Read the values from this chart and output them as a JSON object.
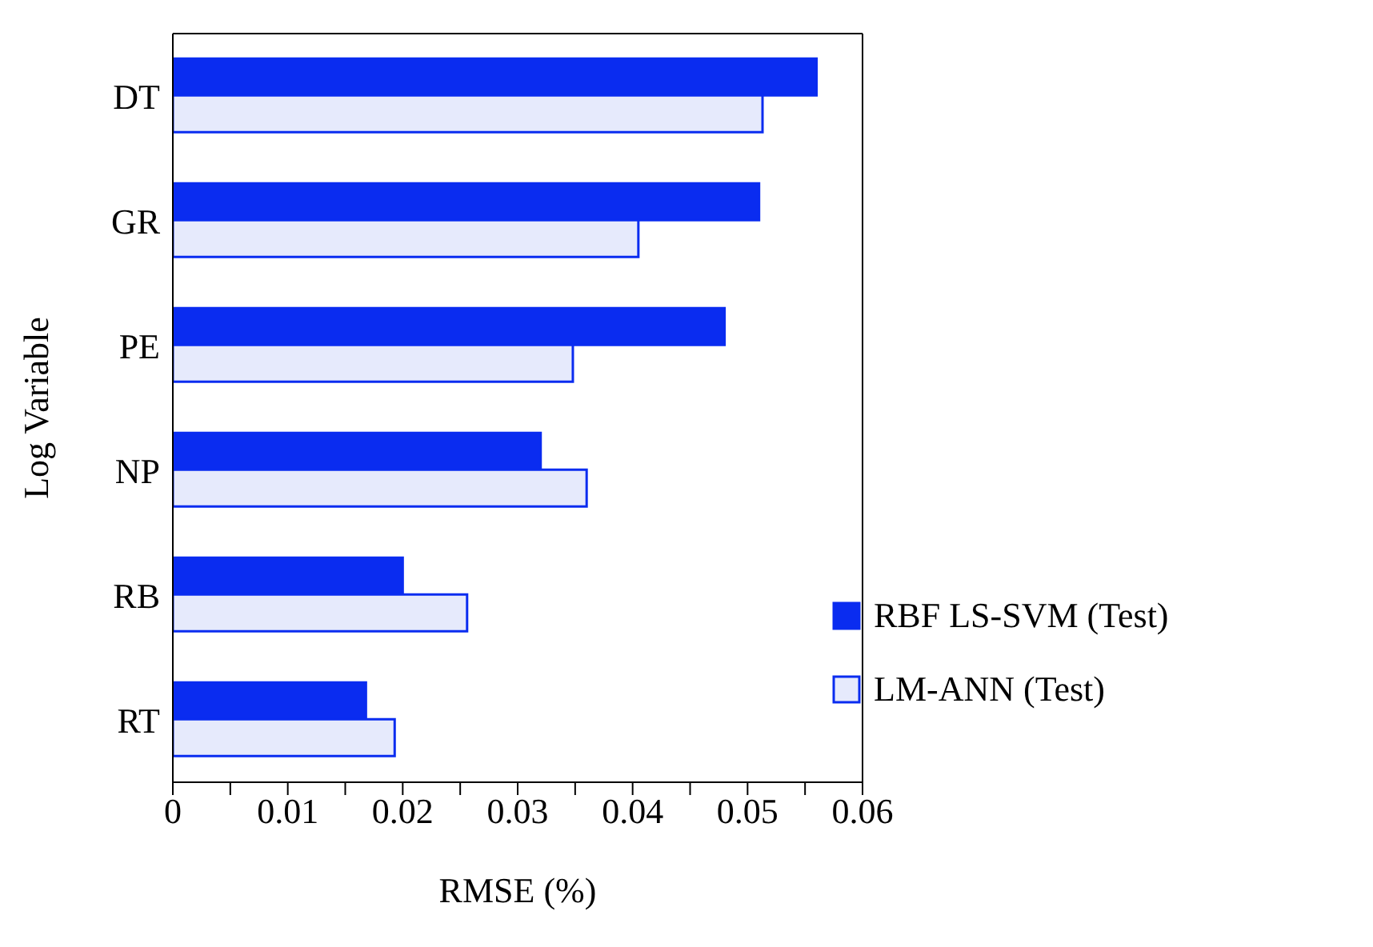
{
  "chart_data": {
    "type": "bar",
    "orientation": "horizontal",
    "xlabel": "RMSE (%)",
    "ylabel": "Log Variable",
    "categories": [
      "DT",
      "GR",
      "PE",
      "NP",
      "RB",
      "RT"
    ],
    "series": [
      {
        "name": "RBF LS-SVM (Test)",
        "color": "#0a2cf0",
        "values": [
          0.056,
          0.051,
          0.048,
          0.032,
          0.02,
          0.0168
        ]
      },
      {
        "name": "LM-ANN (Test)",
        "color": "#e6eafc",
        "values": [
          0.0513,
          0.0405,
          0.0348,
          0.036,
          0.0256,
          0.0193
        ]
      }
    ],
    "xlim": [
      0,
      0.06
    ],
    "xticks": [
      0,
      {
        "value": 0.005,
        "label": null
      },
      0.01,
      {
        "value": 0.015,
        "label": null
      },
      0.02,
      {
        "value": 0.025,
        "label": null
      },
      0.03,
      {
        "value": 0.035,
        "label": null
      },
      0.04,
      {
        "value": 0.045,
        "label": null
      },
      0.05,
      {
        "value": 0.055,
        "label": null
      },
      0.06
    ],
    "grid": false,
    "legend": "bottom right"
  }
}
